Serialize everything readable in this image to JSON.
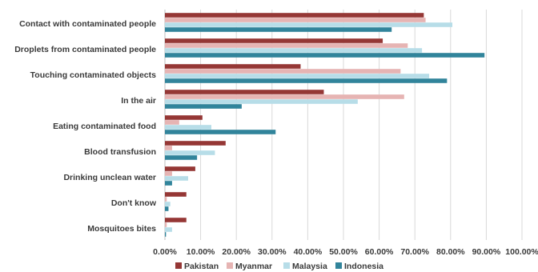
{
  "chart_data": {
    "type": "bar",
    "orientation": "horizontal",
    "title": "",
    "xlabel": "",
    "ylabel": "",
    "xlim": [
      0,
      100
    ],
    "x_tick_labels": [
      "0.00%",
      "10.00%",
      "20.00%",
      "30.00%",
      "40.00%",
      "50.00%",
      "60.00%",
      "70.00%",
      "80.00%",
      "90.00%",
      "100.00%"
    ],
    "grid": true,
    "legend_position": "bottom",
    "categories": [
      "Contact with contaminated people",
      "Droplets from contaminated people",
      "Touching contaminated objects",
      "In the air",
      "Eating contaminated food",
      "Blood transfusion",
      "Drinking unclean water",
      "Don't know",
      "Mosquitoes bites"
    ],
    "series": [
      {
        "name": "Pakistan",
        "color": "#953735",
        "values": [
          72.5,
          61.0,
          38.0,
          44.5,
          10.5,
          17.0,
          8.5,
          6.0,
          6.0
        ]
      },
      {
        "name": "Myanmar",
        "color": "#e6b4b3",
        "values": [
          73.0,
          68.0,
          66.0,
          67.0,
          4.0,
          2.0,
          2.0,
          0.5,
          0.5
        ]
      },
      {
        "name": "Malaysia",
        "color": "#b7dde8",
        "values": [
          80.5,
          72.0,
          74.0,
          54.0,
          13.0,
          14.0,
          6.5,
          1.5,
          2.0
        ]
      },
      {
        "name": "Indonesia",
        "color": "#31849b",
        "values": [
          63.5,
          89.5,
          79.0,
          21.5,
          31.0,
          9.0,
          2.0,
          1.0,
          0.3
        ]
      }
    ]
  }
}
